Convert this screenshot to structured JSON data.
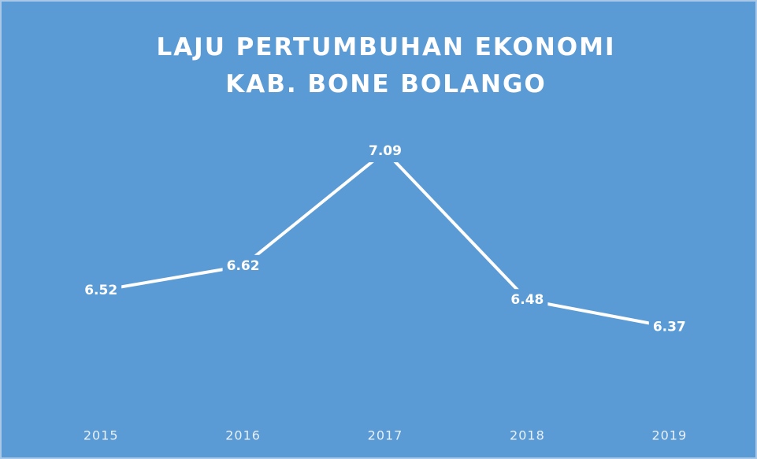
{
  "chart_data": {
    "type": "line",
    "title": [
      "LAJU PERTUMBUHAN EKONOMI",
      "KAB. BONE BOLANGO"
    ],
    "categories": [
      "2015",
      "2016",
      "2017",
      "2018",
      "2019"
    ],
    "values": [
      6.52,
      6.62,
      7.09,
      6.48,
      6.37
    ],
    "color": "#ffffff",
    "ylim": [
      6.0,
      7.1
    ]
  }
}
